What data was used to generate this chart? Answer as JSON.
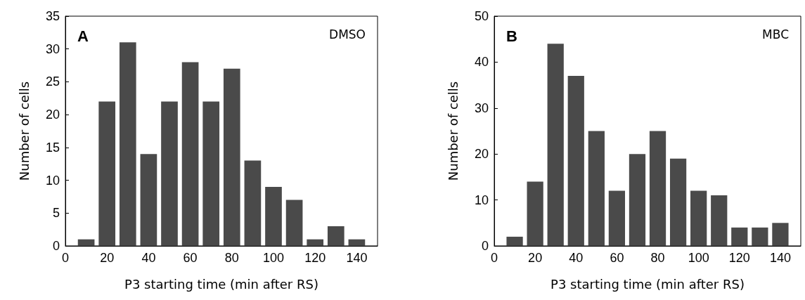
{
  "chart_data": [
    {
      "type": "histogram",
      "title": "A",
      "annotations": [
        "DMSO"
      ],
      "xlabel": "P3 starting time (min after RS)",
      "ylabel": "Number of cells",
      "bins": [
        5,
        15,
        25,
        35,
        45,
        55,
        65,
        75,
        85,
        95,
        105,
        115,
        125,
        135,
        145
      ],
      "values": [
        1,
        22,
        31,
        14,
        22,
        28,
        22,
        27,
        13,
        9,
        7,
        1,
        3,
        1
      ],
      "color": "#4a4a4a",
      "xlim": [
        0,
        150
      ],
      "xticks": [
        0,
        20,
        40,
        60,
        80,
        100,
        120,
        140
      ],
      "ylim": [
        0,
        35
      ],
      "yticks": [
        0,
        5,
        10,
        15,
        20,
        25,
        30,
        35
      ],
      "grid": false
    },
    {
      "type": "histogram",
      "title": "B",
      "annotations": [
        "MBC"
      ],
      "xlabel": "P3 starting time (min after RS)",
      "ylabel": "Number of cells",
      "bins": [
        5,
        15,
        25,
        35,
        45,
        55,
        65,
        75,
        85,
        95,
        105,
        115,
        125,
        135,
        145
      ],
      "values": [
        2,
        14,
        44,
        37,
        25,
        12,
        20,
        25,
        19,
        12,
        11,
        4,
        4,
        5
      ],
      "color": "#4a4a4a",
      "xlim": [
        0,
        150
      ],
      "xticks": [
        0,
        20,
        40,
        60,
        80,
        100,
        120,
        140
      ],
      "ylim": [
        0,
        50
      ],
      "yticks": [
        0,
        10,
        20,
        30,
        40,
        50
      ],
      "grid": false
    }
  ]
}
